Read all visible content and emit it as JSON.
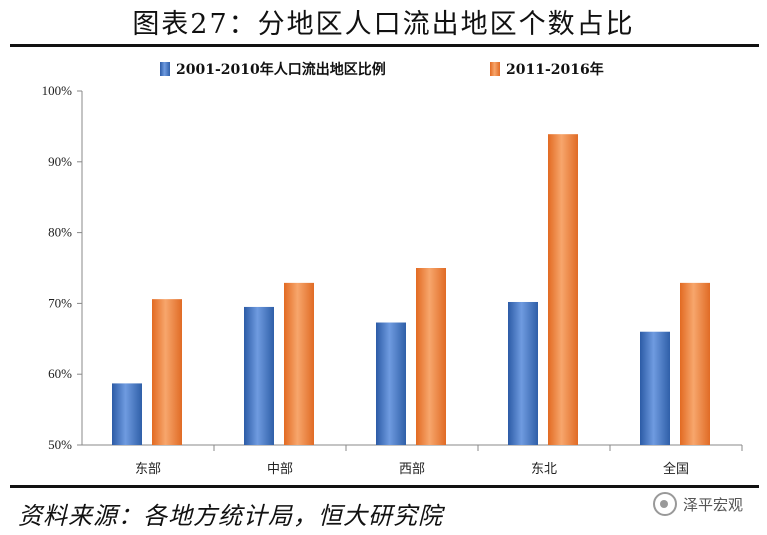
{
  "title": "图表27：分地区人口流出地区个数占比",
  "source": "资料来源：各地方统计局，恒大研究院",
  "watermark": {
    "text": "泽平宏观",
    "icon": "wechat-icon"
  },
  "colors": {
    "series1": "#3d6ebd",
    "series2": "#f0803a",
    "axis": "#888888"
  },
  "chart_data": {
    "type": "bar",
    "categories": [
      "东部",
      "中部",
      "西部",
      "东北",
      "全国"
    ],
    "series": [
      {
        "name": "2001-2010年人口流出地区比例",
        "values": [
          58.7,
          69.5,
          67.3,
          70.2,
          66.0
        ]
      },
      {
        "name": "2011-2016年",
        "values": [
          70.6,
          72.9,
          75.0,
          93.9,
          72.9
        ]
      }
    ],
    "ylim": [
      50,
      100
    ],
    "yticks": [
      "50%",
      "60%",
      "70%",
      "80%",
      "90%",
      "100%"
    ],
    "legend": "top-center",
    "grid": false
  }
}
